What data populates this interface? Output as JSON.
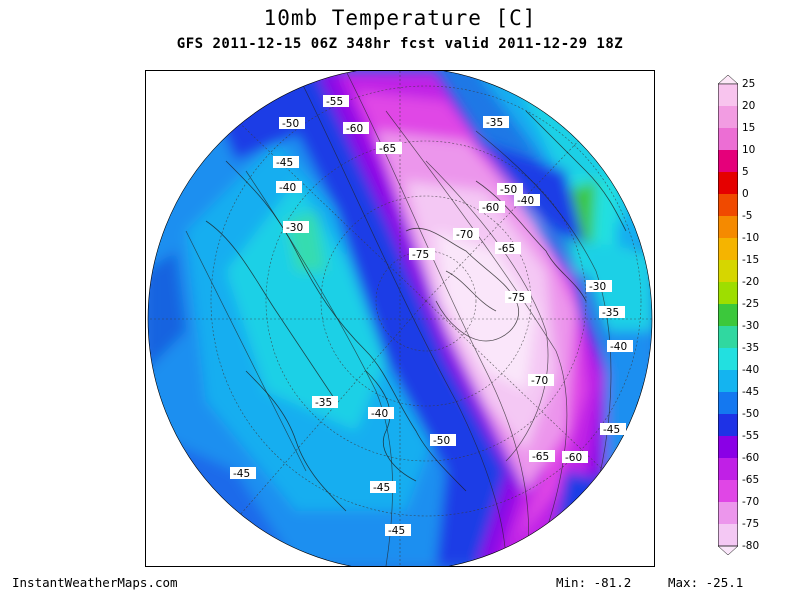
{
  "title": "10mb Temperature [C]",
  "subtitle": "GFS 2011-12-15 06Z 348hr fcst valid 2011-12-29 18Z",
  "footer": {
    "credit": "InstantWeatherMaps.com",
    "min_label": "Min:",
    "min_value": "-81.2",
    "max_label": "Max:",
    "max_value": "-25.1"
  },
  "colorbar": {
    "labels": [
      "25",
      "20",
      "15",
      "10",
      "5",
      "0",
      "-5",
      "-10",
      "-15",
      "-20",
      "-25",
      "-30",
      "-35",
      "-40",
      "-45",
      "-50",
      "-55",
      "-60",
      "-65",
      "-70",
      "-75",
      "-80"
    ],
    "colors": [
      "#fde8f8",
      "#f8c4ee",
      "#f29ce2",
      "#ec6ed4",
      "#e5007a",
      "#e50000",
      "#f04a00",
      "#f58a00",
      "#f5b400",
      "#d6d600",
      "#9ede00",
      "#3cc83c",
      "#30d8a0",
      "#22e0e0",
      "#14b4f0",
      "#1478f0",
      "#1e32e6",
      "#8a00e6",
      "#c020e6",
      "#e046e6",
      "#ec96ec",
      "#f4c8f4",
      "#fae6fa"
    ]
  },
  "map": {
    "contour_labels": [
      {
        "text": "-55"
      },
      {
        "text": "-50"
      },
      {
        "text": "-60"
      },
      {
        "text": "-35"
      },
      {
        "text": "-65"
      },
      {
        "text": "-45"
      },
      {
        "text": "-40"
      },
      {
        "text": "-50"
      },
      {
        "text": "-60"
      },
      {
        "text": "-40"
      },
      {
        "text": "-30"
      },
      {
        "text": "-70"
      },
      {
        "text": "-65"
      },
      {
        "text": "-75"
      },
      {
        "text": "-30"
      },
      {
        "text": "-75"
      },
      {
        "text": "-35"
      },
      {
        "text": "-40"
      },
      {
        "text": "-70"
      },
      {
        "text": "-35"
      },
      {
        "text": "-40"
      },
      {
        "text": "-50"
      },
      {
        "text": "-45"
      },
      {
        "text": "-65"
      },
      {
        "text": "-60"
      },
      {
        "text": "-45"
      },
      {
        "text": "-45"
      },
      {
        "text": "-45"
      }
    ]
  }
}
